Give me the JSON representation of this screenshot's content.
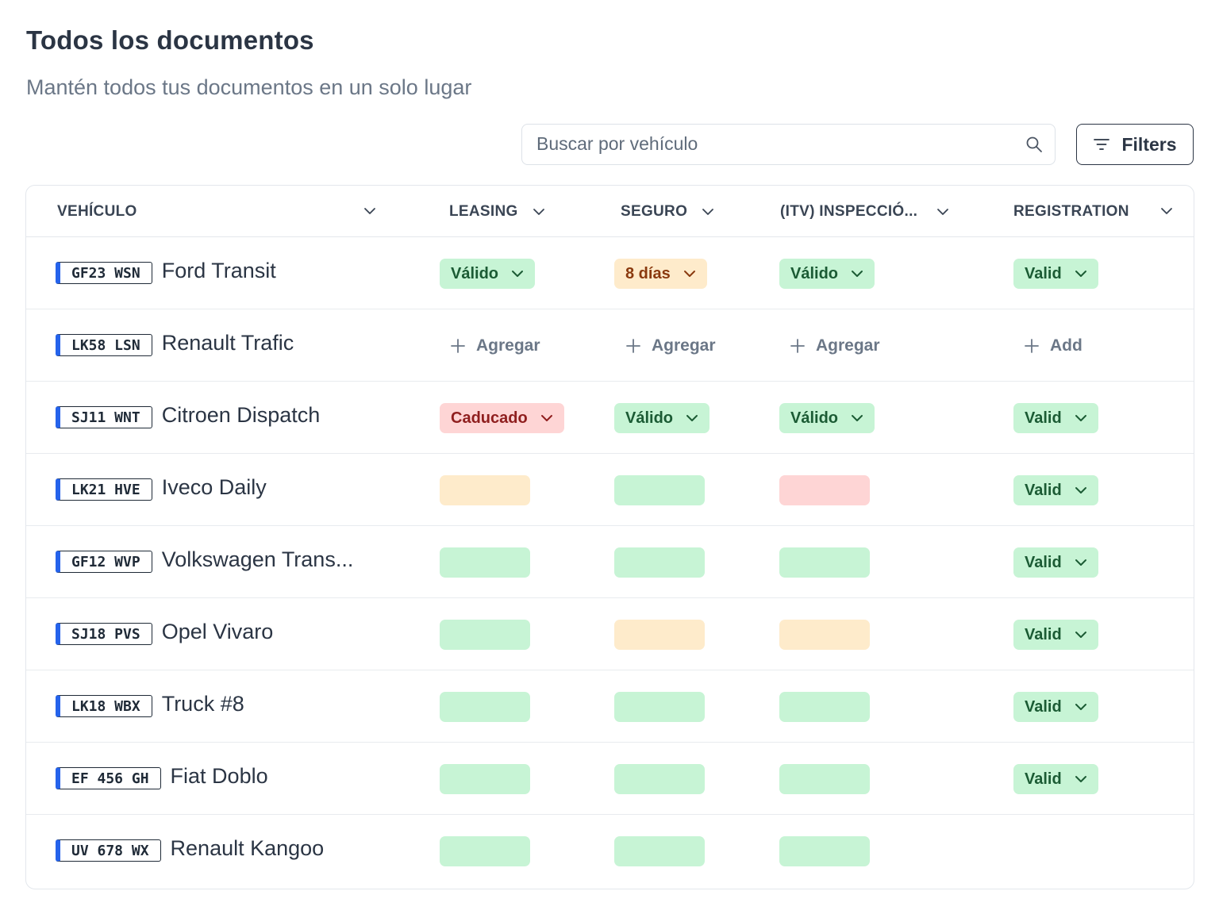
{
  "header": {
    "title": "Todos los documentos",
    "subtitle": "Mantén todos tus documentos en un solo lugar"
  },
  "search": {
    "placeholder": "Buscar por vehículo",
    "value": ""
  },
  "filters": {
    "label": "Filters"
  },
  "columns": [
    "VEHÍCULO",
    "LEASING",
    "SEGURO",
    "(ITV) INSPECCIÓ...",
    "REGISTRATION"
  ],
  "colors": {
    "valid": "#c7f4d5",
    "expiring": "#feebcb",
    "expired": "#fed5d5",
    "plate_band": "#2563eb"
  },
  "rows": [
    {
      "plate": "GF23 WSN",
      "name": "Ford Transit",
      "leasing": {
        "status": "valid",
        "label": "Válido"
      },
      "seguro": {
        "status": "expiring",
        "label": "8 días"
      },
      "itv": {
        "status": "valid",
        "label": "Válido"
      },
      "registration": {
        "status": "valid",
        "label": "Valid"
      }
    },
    {
      "plate": "LK58 LSN",
      "name": "Renault Trafic",
      "leasing": {
        "status": "add",
        "label": "Agregar"
      },
      "seguro": {
        "status": "add",
        "label": "Agregar"
      },
      "itv": {
        "status": "add",
        "label": "Agregar"
      },
      "registration": {
        "status": "add",
        "label": "Add"
      }
    },
    {
      "plate": "SJ11 WNT",
      "name": "Citroen Dispatch",
      "leasing": {
        "status": "expired",
        "label": "Caducado"
      },
      "seguro": {
        "status": "valid",
        "label": "Válido"
      },
      "itv": {
        "status": "valid",
        "label": "Válido"
      },
      "registration": {
        "status": "valid",
        "label": "Valid"
      }
    },
    {
      "plate": "LK21 HVE",
      "name": "Iveco Daily",
      "leasing": {
        "status": "expiring"
      },
      "seguro": {
        "status": "valid"
      },
      "itv": {
        "status": "expired"
      },
      "registration": {
        "status": "valid",
        "label": "Valid"
      }
    },
    {
      "plate": "GF12 WVP",
      "name": "Volkswagen Trans...",
      "leasing": {
        "status": "valid"
      },
      "seguro": {
        "status": "valid"
      },
      "itv": {
        "status": "valid"
      },
      "registration": {
        "status": "valid",
        "label": "Valid"
      }
    },
    {
      "plate": "SJ18 PVS",
      "name": "Opel Vivaro",
      "leasing": {
        "status": "valid"
      },
      "seguro": {
        "status": "expiring"
      },
      "itv": {
        "status": "expiring"
      },
      "registration": {
        "status": "valid",
        "label": "Valid"
      }
    },
    {
      "plate": "LK18 WBX",
      "name": "Truck #8",
      "leasing": {
        "status": "valid"
      },
      "seguro": {
        "status": "valid"
      },
      "itv": {
        "status": "valid"
      },
      "registration": {
        "status": "valid",
        "label": "Valid"
      }
    },
    {
      "plate": "EF 456 GH",
      "name": "Fiat Doblo",
      "leasing": {
        "status": "valid"
      },
      "seguro": {
        "status": "valid"
      },
      "itv": {
        "status": "valid"
      },
      "registration": {
        "status": "valid",
        "label": "Valid"
      }
    },
    {
      "plate": "UV 678 WX",
      "name": "Renault Kangoo",
      "leasing": {
        "status": "valid"
      },
      "seguro": {
        "status": "valid"
      },
      "itv": {
        "status": "valid"
      },
      "registration": {
        "status": "none"
      }
    }
  ]
}
